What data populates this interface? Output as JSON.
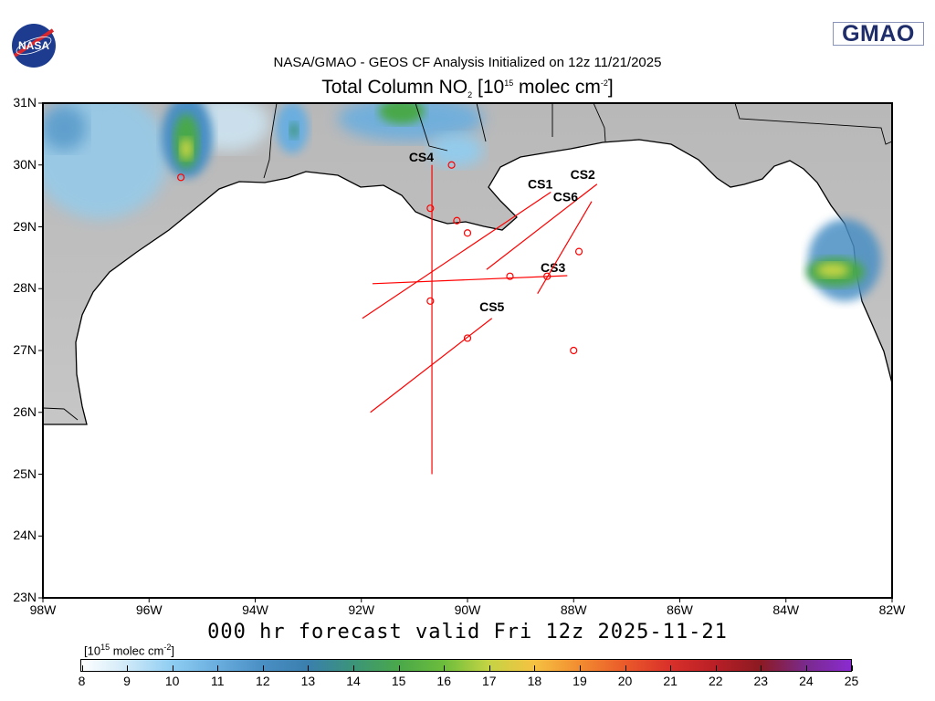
{
  "header": {
    "logo_left": "NASA",
    "logo_right": "GMAO",
    "subtitle": "NASA/GMAO - GEOS CF Analysis Initialized on 12z 11/21/2025",
    "title_main": "Total Column NO",
    "title_sub": "2",
    "title_bracket_open": " [10",
    "title_exp": "15",
    "title_unit": " molec cm",
    "title_unit_exp": "-2",
    "title_close": "]"
  },
  "map": {
    "lon_range": [
      -98,
      -82
    ],
    "lat_range": [
      23,
      31
    ],
    "lat_labels": [
      "31N",
      "30N",
      "29N",
      "28N",
      "27N",
      "26N",
      "25N",
      "24N",
      "23N"
    ],
    "lon_labels": [
      "98W",
      "96W",
      "94W",
      "92W",
      "90W",
      "88W",
      "86W",
      "84W",
      "82W"
    ],
    "colors": {
      "land": "#bdbdbd",
      "water": "#ffffff",
      "coast": "#000000",
      "overlay": "#ff0000"
    },
    "cross_sections": [
      {
        "label": "CS1",
        "start": [
          -91.98,
          27.52
        ],
        "end": [
          -88.43,
          29.56
        ]
      },
      {
        "label": "CS2",
        "start": [
          -89.64,
          28.31
        ],
        "end": [
          -87.56,
          29.69
        ]
      },
      {
        "label": "CS3",
        "start": [
          -91.79,
          28.08
        ],
        "end": [
          -88.12,
          28.21
        ]
      },
      {
        "label": "CS4",
        "start": [
          -90.67,
          30.0
        ],
        "end": [
          -90.67,
          25.0
        ]
      },
      {
        "label": "CS5",
        "start": [
          -91.83,
          26.0
        ],
        "end": [
          -89.54,
          27.52
        ]
      },
      {
        "label": "CS6",
        "start": [
          -88.68,
          27.92
        ],
        "end": [
          -87.66,
          29.41
        ]
      }
    ],
    "sites": [
      [
        -90.3,
        30.0
      ],
      [
        -90.7,
        29.3
      ],
      [
        -90.2,
        29.1
      ],
      [
        -90.0,
        28.9
      ],
      [
        -87.9,
        28.6
      ],
      [
        -89.2,
        28.2
      ],
      [
        -88.5,
        28.2
      ],
      [
        -90.7,
        27.8
      ],
      [
        -90.0,
        27.2
      ],
      [
        -88.0,
        27.0
      ],
      [
        -95.4,
        29.8
      ]
    ]
  },
  "footer": {
    "valid_text": "000 hr forecast valid Fri 12z 2025-11-21"
  },
  "colorbar": {
    "unit_open": "[10",
    "unit_exp": "15",
    "unit_text": " molec cm",
    "unit_exp2": "-2",
    "unit_close": "]",
    "ticks": [
      "8",
      "9",
      "10",
      "11",
      "12",
      "13",
      "14",
      "15",
      "16",
      "17",
      "18",
      "19",
      "20",
      "21",
      "22",
      "23",
      "24",
      "25"
    ],
    "range": [
      8,
      25
    ],
    "colors": [
      "#ffffff",
      "#cfe9f8",
      "#8ecdf2",
      "#6aaedf",
      "#4a8fc4",
      "#3a7fae",
      "#3b9479",
      "#4aa84a",
      "#6cbd3c",
      "#c4d444",
      "#f5c242",
      "#f28c30",
      "#ea5a2a",
      "#d9302a",
      "#b81f26",
      "#8c1a22",
      "#7a2a8c",
      "#8a2bd0"
    ]
  }
}
